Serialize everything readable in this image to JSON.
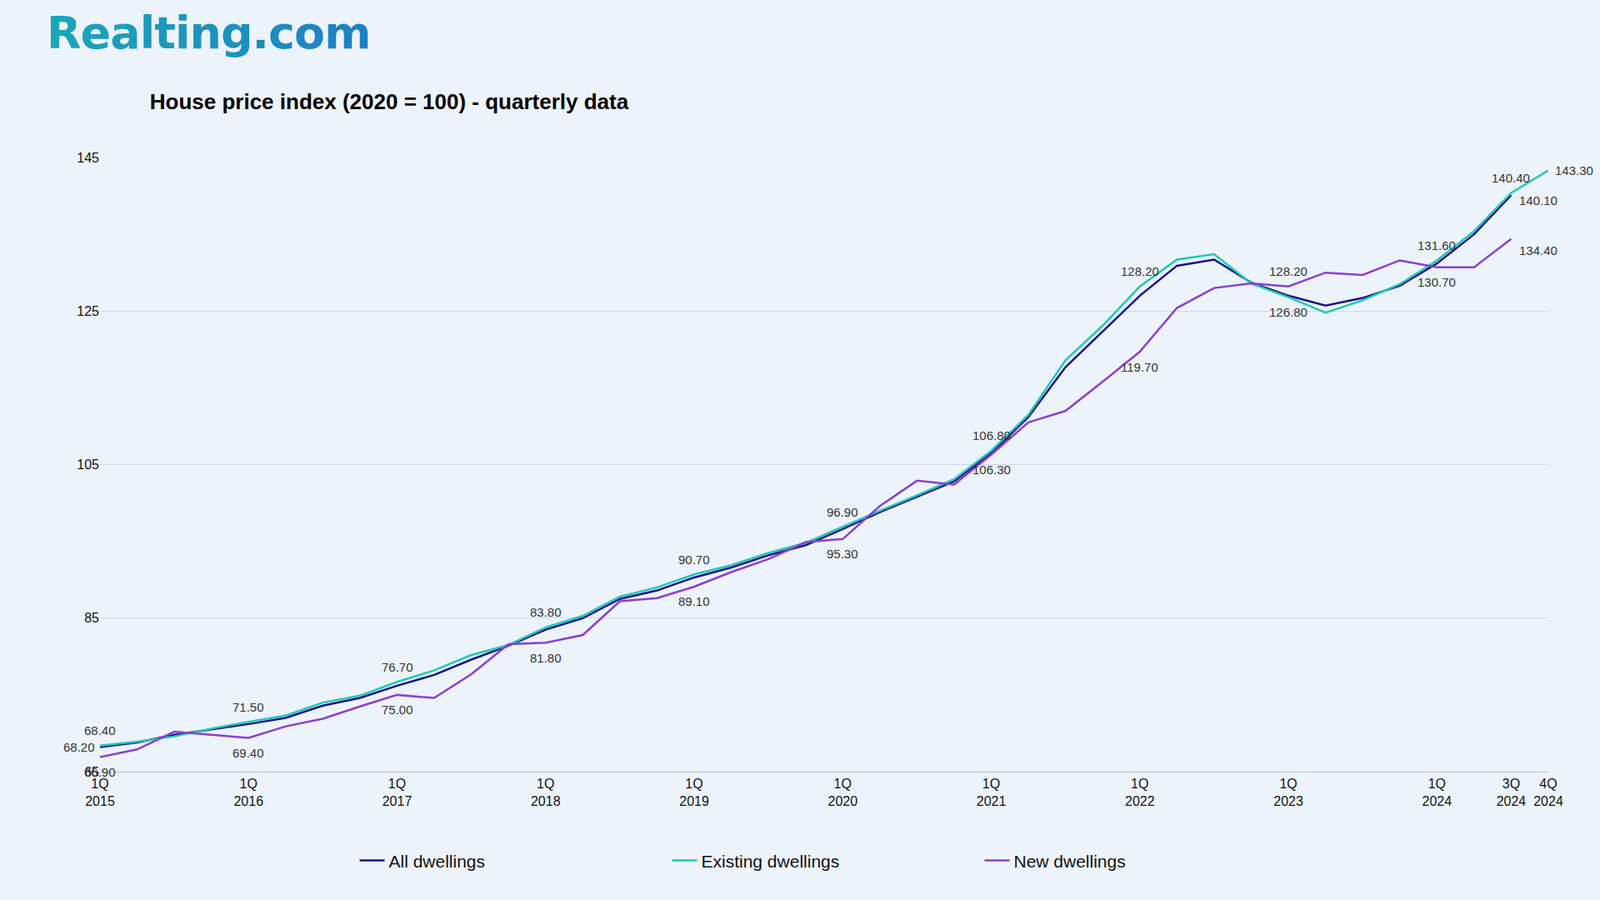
{
  "chart_data": {
    "type": "line",
    "brand": "Realting.com",
    "title": "House price index (2020 = 100) - quarterly data",
    "categories": [
      "1Q 2015",
      null,
      null,
      null,
      "1Q 2016",
      null,
      null,
      null,
      "1Q 2017",
      null,
      null,
      null,
      "1Q 2018",
      null,
      null,
      null,
      "1Q 2019",
      null,
      null,
      null,
      "1Q 2020",
      null,
      null,
      null,
      "1Q 2021",
      null,
      null,
      null,
      "1Q 2022",
      null,
      null,
      null,
      "1Q 2023",
      null,
      null,
      null,
      "1Q 2024",
      null,
      "3Q 2024",
      "4Q 2024"
    ],
    "series": [
      {
        "name": "All dwellings",
        "color": "#14148c",
        "values": [
          68.2,
          68.8,
          69.8,
          70.5,
          71.2,
          72.0,
          73.6,
          74.6,
          76.2,
          77.6,
          79.6,
          81.4,
          83.5,
          85.0,
          87.5,
          88.6,
          90.3,
          91.6,
          93.2,
          94.5,
          96.6,
          98.8,
          100.8,
          102.8,
          106.5,
          111.2,
          117.7,
          122.3,
          127.0,
          130.9,
          131.7,
          128.7,
          127.0,
          125.7,
          126.7,
          128.3,
          131.2,
          135.0,
          140.1,
          null
        ],
        "value_labels": [
          "68.20",
          null,
          null,
          null,
          null,
          null,
          null,
          null,
          null,
          null,
          null,
          null,
          null,
          null,
          null,
          null,
          null,
          null,
          null,
          null,
          null,
          null,
          null,
          null,
          null,
          null,
          null,
          null,
          null,
          null,
          null,
          null,
          null,
          null,
          null,
          null,
          null,
          null,
          "140.10",
          null
        ]
      },
      {
        "name": "Existing dwellings",
        "color": "#1fc9b2",
        "values": [
          68.4,
          68.9,
          69.6,
          70.6,
          71.5,
          72.3,
          74.0,
          74.9,
          76.7,
          78.2,
          80.2,
          81.5,
          83.8,
          85.3,
          87.8,
          89.0,
          90.7,
          91.9,
          93.5,
          94.8,
          96.9,
          99.0,
          101.0,
          103.1,
          106.8,
          111.5,
          118.6,
          123.1,
          128.2,
          131.7,
          132.4,
          128.6,
          126.8,
          124.8,
          126.4,
          128.5,
          131.6,
          135.4,
          140.4,
          143.3
        ],
        "value_labels": [
          "68.40",
          null,
          null,
          null,
          "71.50",
          null,
          null,
          null,
          "76.70",
          null,
          null,
          null,
          "83.80",
          null,
          null,
          null,
          "90.70",
          null,
          null,
          null,
          "96.90",
          null,
          null,
          null,
          "106.80",
          null,
          null,
          null,
          "128.20",
          null,
          null,
          null,
          "126.80",
          null,
          null,
          null,
          "131.60",
          null,
          "140.40",
          "143.30"
        ]
      },
      {
        "name": "New dwellings",
        "color": "#8a3fd1",
        "values": [
          66.9,
          67.9,
          70.2,
          69.8,
          69.4,
          70.9,
          71.9,
          73.5,
          75.0,
          74.6,
          77.7,
          81.6,
          81.8,
          82.8,
          87.2,
          87.6,
          89.1,
          91.0,
          92.7,
          94.9,
          95.3,
          99.6,
          102.9,
          102.4,
          106.3,
          110.5,
          112.0,
          115.8,
          119.7,
          125.4,
          128.0,
          128.6,
          128.2,
          130.0,
          129.7,
          131.6,
          130.7,
          130.7,
          134.4,
          null
        ],
        "value_labels": [
          "66.90",
          null,
          null,
          null,
          "69.40",
          null,
          null,
          null,
          "75.00",
          null,
          null,
          null,
          "81.80",
          null,
          null,
          null,
          "89.10",
          null,
          null,
          null,
          "95.30",
          null,
          null,
          null,
          "106.30",
          null,
          null,
          null,
          "119.70",
          null,
          null,
          null,
          "128.20",
          null,
          null,
          null,
          "130.70",
          null,
          "134.40",
          null
        ]
      }
    ],
    "ylim": [
      65,
      145
    ],
    "yticks": [
      65,
      85,
      105,
      125,
      145
    ],
    "grid": true,
    "legend": "bottom",
    "data_labels": true
  }
}
